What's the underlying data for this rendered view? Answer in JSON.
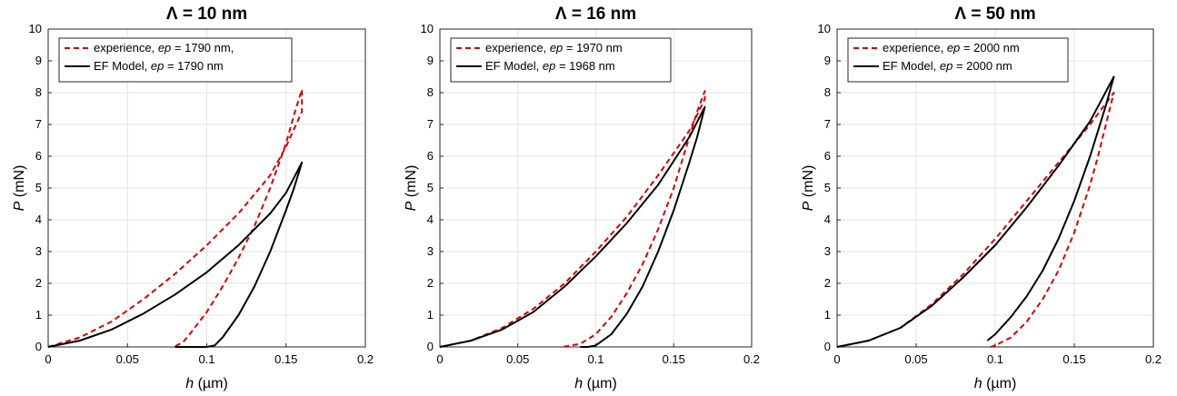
{
  "chart_data": [
    {
      "type": "line",
      "title": "Λ = 10 nm",
      "xlabel": {
        "var": "h",
        "unit": "(µm)"
      },
      "ylabel": {
        "var": "P",
        "unit": "(mN)"
      },
      "xlim": [
        0,
        0.2
      ],
      "ylim": [
        0,
        10
      ],
      "xticks": [
        "0",
        "0.05",
        "0.1",
        "0.15",
        "0.2"
      ],
      "yticks": [
        "0",
        "1",
        "2",
        "3",
        "4",
        "5",
        "6",
        "7",
        "8",
        "9",
        "10"
      ],
      "grid": true,
      "legend": {
        "placement": "top-left",
        "entries": [
          {
            "name": "experience,",
            "ep_label": "ep",
            "ep_value": "= 1790 nm,"
          },
          {
            "name": "EF Model,",
            "ep_label": "ep",
            "ep_value": "= 1790 nm"
          }
        ]
      },
      "series": [
        {
          "style": "dashed",
          "color": "#d40000",
          "x": [
            0,
            0.02,
            0.04,
            0.06,
            0.08,
            0.1,
            0.12,
            0.14,
            0.15,
            0.16,
            0.16,
            0.155,
            0.15,
            0.14,
            0.13,
            0.12,
            0.11,
            0.1,
            0.09,
            0.085,
            0.08,
            0.079
          ],
          "y": [
            0,
            0.3,
            0.8,
            1.5,
            2.3,
            3.2,
            4.2,
            5.4,
            6.3,
            7.4,
            8.1,
            7.3,
            6.4,
            5.0,
            3.8,
            2.8,
            1.9,
            1.1,
            0.45,
            0.15,
            0.02,
            0
          ]
        },
        {
          "style": "solid",
          "color": "#000000",
          "x": [
            0,
            0.02,
            0.04,
            0.06,
            0.08,
            0.1,
            0.12,
            0.14,
            0.15,
            0.16,
            0.155,
            0.15,
            0.14,
            0.13,
            0.12,
            0.11,
            0.105,
            0.1,
            0.09,
            0.08
          ],
          "y": [
            0,
            0.2,
            0.55,
            1.05,
            1.65,
            2.35,
            3.2,
            4.2,
            4.85,
            5.8,
            5.0,
            4.3,
            3.0,
            1.9,
            1.0,
            0.3,
            0.05,
            0,
            0,
            0
          ]
        }
      ]
    },
    {
      "type": "line",
      "title": "Λ = 16 nm",
      "xlabel": {
        "var": "h",
        "unit": "(µm)"
      },
      "ylabel": {
        "var": "P",
        "unit": "(mN)"
      },
      "xlim": [
        0,
        0.2
      ],
      "ylim": [
        0,
        10
      ],
      "xticks": [
        "0",
        "0.05",
        "0.1",
        "0.15",
        "0.2"
      ],
      "yticks": [
        "0",
        "1",
        "2",
        "3",
        "4",
        "5",
        "6",
        "7",
        "8",
        "9",
        "10"
      ],
      "grid": true,
      "legend": {
        "placement": "top-left",
        "entries": [
          {
            "name": "experience,",
            "ep_label": "ep",
            "ep_value": "= 1970 nm"
          },
          {
            "name": "EF Model,",
            "ep_label": "ep",
            "ep_value": "= 1968 nm"
          }
        ]
      },
      "series": [
        {
          "style": "dashed",
          "color": "#d40000",
          "x": [
            0,
            0.02,
            0.04,
            0.06,
            0.08,
            0.1,
            0.12,
            0.14,
            0.16,
            0.17,
            0.17,
            0.165,
            0.16,
            0.15,
            0.14,
            0.13,
            0.12,
            0.11,
            0.1,
            0.09,
            0.08,
            0.077
          ],
          "y": [
            0,
            0.2,
            0.6,
            1.2,
            2.0,
            3.0,
            4.1,
            5.4,
            6.8,
            7.8,
            8.05,
            7.4,
            6.6,
            5.0,
            3.7,
            2.6,
            1.7,
            0.95,
            0.4,
            0.1,
            0.01,
            0
          ]
        },
        {
          "style": "solid",
          "color": "#000000",
          "x": [
            0,
            0.02,
            0.04,
            0.06,
            0.08,
            0.1,
            0.12,
            0.14,
            0.16,
            0.17,
            0.165,
            0.16,
            0.15,
            0.14,
            0.13,
            0.12,
            0.11,
            0.1,
            0.095,
            0.09
          ],
          "y": [
            0,
            0.2,
            0.55,
            1.1,
            1.9,
            2.85,
            3.9,
            5.1,
            6.6,
            7.55,
            6.6,
            5.8,
            4.3,
            3.0,
            1.9,
            1.05,
            0.4,
            0.05,
            0,
            0
          ]
        }
      ]
    },
    {
      "type": "line",
      "title": "Λ = 50 nm",
      "xlabel": {
        "var": "h",
        "unit": "(µm)"
      },
      "ylabel": {
        "var": "P",
        "unit": "(mN)"
      },
      "xlim": [
        0,
        0.2
      ],
      "ylim": [
        0,
        10
      ],
      "xticks": [
        "0",
        "0.05",
        "0.1",
        "0.15",
        "0.2"
      ],
      "yticks": [
        "0",
        "1",
        "2",
        "3",
        "4",
        "5",
        "6",
        "7",
        "8",
        "9",
        "10"
      ],
      "grid": true,
      "legend": {
        "placement": "top-left",
        "entries": [
          {
            "name": "experience,",
            "ep_label": "ep",
            "ep_value": "= 2000 nm"
          },
          {
            "name": "EF Model,",
            "ep_label": "ep",
            "ep_value": "= 2000 nm"
          }
        ]
      },
      "series": [
        {
          "style": "dashed",
          "color": "#d40000",
          "x": [
            0,
            0.02,
            0.04,
            0.06,
            0.08,
            0.1,
            0.12,
            0.14,
            0.16,
            0.175,
            0.17,
            0.165,
            0.16,
            0.15,
            0.14,
            0.13,
            0.12,
            0.11,
            0.1,
            0.097
          ],
          "y": [
            0,
            0.2,
            0.6,
            1.35,
            2.3,
            3.4,
            4.6,
            5.8,
            7.0,
            8.0,
            7.0,
            6.0,
            5.1,
            3.6,
            2.4,
            1.5,
            0.8,
            0.3,
            0.05,
            0
          ]
        },
        {
          "style": "solid",
          "color": "#000000",
          "x": [
            0,
            0.02,
            0.04,
            0.06,
            0.08,
            0.1,
            0.12,
            0.14,
            0.16,
            0.175,
            0.17,
            0.16,
            0.15,
            0.14,
            0.13,
            0.12,
            0.11,
            0.1,
            0.095
          ],
          "y": [
            0,
            0.2,
            0.6,
            1.3,
            2.2,
            3.2,
            4.4,
            5.7,
            7.1,
            8.5,
            7.6,
            6.0,
            4.6,
            3.4,
            2.4,
            1.6,
            0.95,
            0.4,
            0.2
          ]
        }
      ]
    }
  ]
}
